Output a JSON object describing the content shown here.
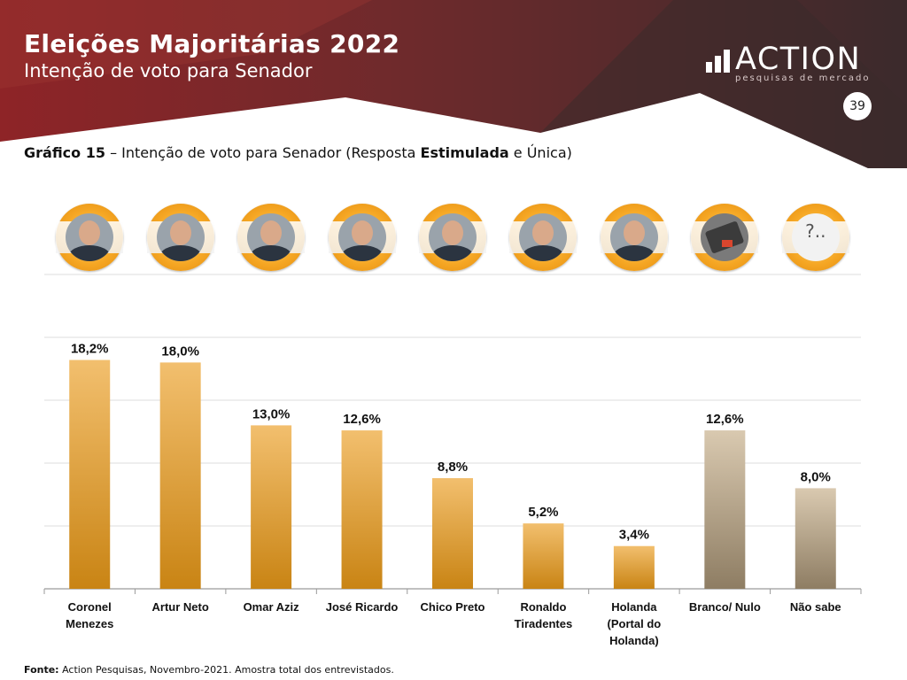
{
  "header": {
    "title": "Eleições Majoritárias 2022",
    "subtitle": "Intenção de voto para Senador",
    "logo_word": "ACTION",
    "logo_tagline": "pesquisas de mercado",
    "page_number": "39",
    "colors": {
      "dark": "#3b2a2c",
      "red": "#8e2427"
    }
  },
  "caption": {
    "label": "Gráfico 15",
    "text_before": " – Intenção de voto para Senador (Resposta ",
    "bold_word": "Estimulada",
    "text_after": " e Única)"
  },
  "photos": [
    {
      "name": "coronel-menezes-photo"
    },
    {
      "name": "artur-neto-photo"
    },
    {
      "name": "omar-aziz-photo"
    },
    {
      "name": "jose-ricardo-photo"
    },
    {
      "name": "chico-preto-photo"
    },
    {
      "name": "ronaldo-tiradentes-photo"
    },
    {
      "name": "holanda-photo"
    },
    {
      "name": "branco-nulo-icon"
    },
    {
      "name": "nao-sabe-icon"
    }
  ],
  "chart_data": {
    "type": "bar",
    "categories": [
      "Coronel Menezes",
      "Artur Neto",
      "Omar Aziz",
      "José Ricardo",
      "Chico Preto",
      "Ronaldo Tiradentes",
      "Holanda (Portal do Holanda)",
      "Branco/ Nulo",
      "Não sabe"
    ],
    "category_lines": [
      [
        "Coronel",
        "Menezes"
      ],
      [
        "Artur Neto"
      ],
      [
        "Omar Aziz"
      ],
      [
        "José Ricardo"
      ],
      [
        "Chico Preto"
      ],
      [
        "Ronaldo",
        "Tiradentes"
      ],
      [
        "Holanda",
        "(Portal do",
        "Holanda)"
      ],
      [
        "Branco/ Nulo"
      ],
      [
        "Não sabe"
      ]
    ],
    "values": [
      18.2,
      18.0,
      13.0,
      12.6,
      8.8,
      5.2,
      3.4,
      12.6,
      8.0
    ],
    "data_labels": [
      "18,2%",
      "18,0%",
      "13,0%",
      "12,6%",
      "8,8%",
      "5,2%",
      "3,4%",
      "12,6%",
      "8,0%"
    ],
    "ylim": [
      0,
      25
    ],
    "grid": true,
    "colors": {
      "candidate_top": "#f2bf6e",
      "candidate_bottom": "#c98414",
      "other_top": "#d9c9b0",
      "other_bottom": "#8e7d63"
    }
  },
  "footer": {
    "source_label": "Fonte:",
    "source_text": " Action Pesquisas, Novembro-2021. Amostra total dos entrevistados."
  }
}
